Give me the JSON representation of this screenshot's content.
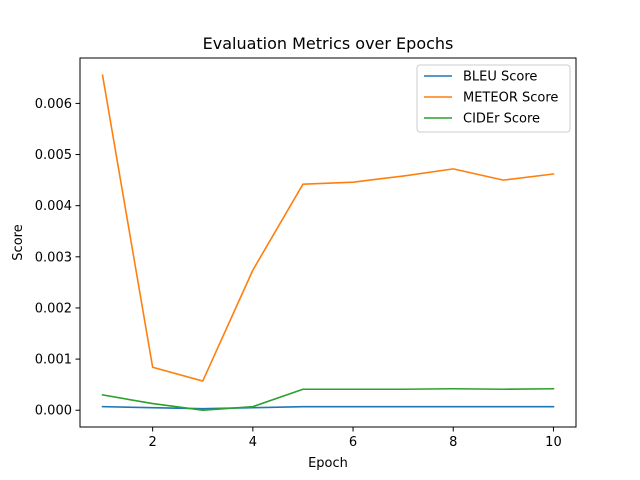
{
  "chart_data": {
    "type": "line",
    "title": "Evaluation Metrics over Epochs",
    "xlabel": "Epoch",
    "ylabel": "Score",
    "x": [
      1,
      2,
      3,
      4,
      5,
      6,
      7,
      8,
      9,
      10
    ],
    "xlim": [
      0.55,
      10.45
    ],
    "ylim": [
      -0.000328,
      0.006888
    ],
    "xticks": [
      2,
      4,
      6,
      8,
      10
    ],
    "xtick_labels": [
      "2",
      "4",
      "6",
      "8",
      "10"
    ],
    "yticks": [
      0,
      0.001,
      0.002,
      0.003,
      0.004,
      0.005,
      0.006
    ],
    "ytick_labels": [
      "0.000",
      "0.001",
      "0.002",
      "0.003",
      "0.004",
      "0.005",
      "0.006"
    ],
    "grid": false,
    "legend_position": "top-right",
    "series": [
      {
        "name": "BLEU Score",
        "color": "#1f77b4",
        "values": [
          7e-05,
          5e-05,
          3e-05,
          5e-05,
          7e-05,
          7e-05,
          7e-05,
          7e-05,
          7e-05,
          7e-05
        ]
      },
      {
        "name": "METEOR Score",
        "color": "#ff7f0e",
        "values": [
          0.00655,
          0.00084,
          0.00057,
          0.00274,
          0.00442,
          0.00446,
          0.00458,
          0.00472,
          0.0045,
          0.00462
        ]
      },
      {
        "name": "CIDEr Score",
        "color": "#2ca02c",
        "values": [
          0.0003,
          0.00013,
          0.0,
          7e-05,
          0.00041,
          0.00041,
          0.00041,
          0.00042,
          0.00041,
          0.00042
        ]
      }
    ]
  }
}
